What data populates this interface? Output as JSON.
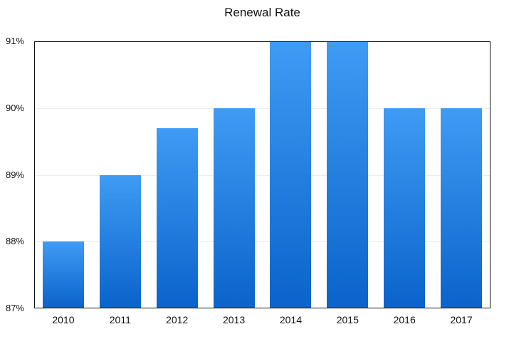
{
  "chart_data": {
    "type": "bar",
    "title": "Renewal Rate",
    "categories": [
      "2010",
      "2011",
      "2012",
      "2013",
      "2014",
      "2015",
      "2016",
      "2017"
    ],
    "values": [
      88,
      89,
      89.7,
      90,
      91,
      91,
      90,
      90
    ],
    "xlabel": "",
    "ylabel": "",
    "ylim": [
      87,
      91
    ],
    "yticks": [
      {
        "value": 91,
        "label": "91%"
      },
      {
        "value": 90,
        "label": "90%"
      },
      {
        "value": 89,
        "label": "89%"
      },
      {
        "value": 88,
        "label": "88%"
      },
      {
        "value": 87,
        "label": "87%"
      }
    ],
    "grid": true,
    "legend": "none",
    "colors": {
      "bar_gradient_top": "#3f9bf4",
      "bar_gradient_bottom": "#0b63cb",
      "gridline": "#ececec",
      "plot_border": "#111111",
      "text": "#111111",
      "background": "#ffffff"
    }
  }
}
